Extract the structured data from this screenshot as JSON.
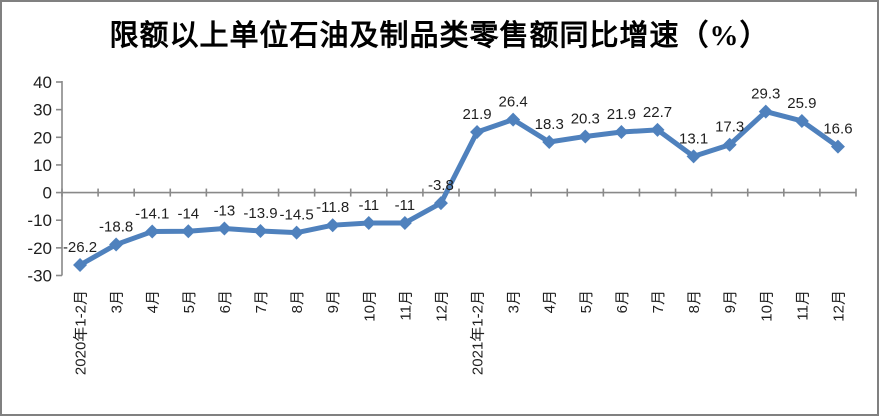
{
  "chart_data": {
    "type": "line",
    "title": "限额以上单位石油及制品类零售额同比增速（%）",
    "categories": [
      "2020年1-2月",
      "3月",
      "4月",
      "5月",
      "6月",
      "7月",
      "8月",
      "9月",
      "10月",
      "11月",
      "12月",
      "2021年1-2月",
      "3月",
      "4月",
      "5月",
      "6月",
      "7月",
      "8月",
      "9月",
      "10月",
      "11月",
      "12月"
    ],
    "values": [
      -26.2,
      -18.8,
      -14.1,
      -14,
      -13,
      -13.9,
      -14.5,
      -11.8,
      -11,
      -11,
      -3.8,
      21.9,
      26.4,
      18.3,
      20.3,
      21.9,
      22.7,
      13.1,
      17.3,
      29.3,
      25.9,
      16.6
    ],
    "data_labels": [
      "-26.2",
      "-18.8",
      "-14.1",
      "-14",
      "-13",
      "-13.9",
      "-14.5",
      "-11.8",
      "-11",
      "-11",
      "-3.8",
      "21.9",
      "26.4",
      "18.3",
      "20.3",
      "21.9",
      "22.7",
      "13.1",
      "17.3",
      "29.3",
      "25.9",
      "16.6"
    ],
    "xlabel": "",
    "ylabel": "",
    "ylim": [
      -30,
      40
    ],
    "yticks": [
      40,
      30,
      20,
      10,
      0,
      -10,
      -20,
      -30
    ],
    "legend": "none",
    "grid": "zero-line-only",
    "marker": "diamond",
    "colors": {
      "line": "#4F81BD",
      "axis": "#898989",
      "text": "#1f1f1f",
      "title": "#000000",
      "border": "#808080"
    }
  }
}
